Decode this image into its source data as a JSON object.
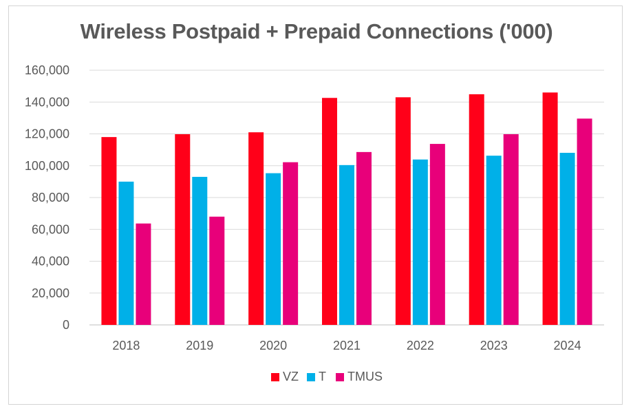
{
  "chart_data": {
    "type": "bar",
    "title": "Wireless Postpaid + Prepaid Connections ('000)",
    "xlabel": "",
    "ylabel": "",
    "categories": [
      "2018",
      "2019",
      "2020",
      "2021",
      "2022",
      "2023",
      "2024"
    ],
    "series": [
      {
        "name": "VZ",
        "color": "#ff0019",
        "values": [
          118000,
          119800,
          121000,
          142600,
          143000,
          144900,
          146000
        ]
      },
      {
        "name": "T",
        "color": "#00b0e8",
        "values": [
          90000,
          93000,
          95300,
          100400,
          103900,
          106300,
          108100
        ]
      },
      {
        "name": "TMUS",
        "color": "#e8007a",
        "values": [
          63700,
          68000,
          102200,
          108600,
          113700,
          119800,
          129600
        ]
      }
    ],
    "ylim": [
      0,
      160000
    ],
    "yticks": [
      "0",
      "20,000",
      "40,000",
      "60,000",
      "80,000",
      "100,000",
      "120,000",
      "140,000",
      "160,000"
    ],
    "ytick_values": [
      0,
      20000,
      40000,
      60000,
      80000,
      100000,
      120000,
      140000,
      160000
    ],
    "grid": true,
    "legend_position": "bottom-center"
  }
}
